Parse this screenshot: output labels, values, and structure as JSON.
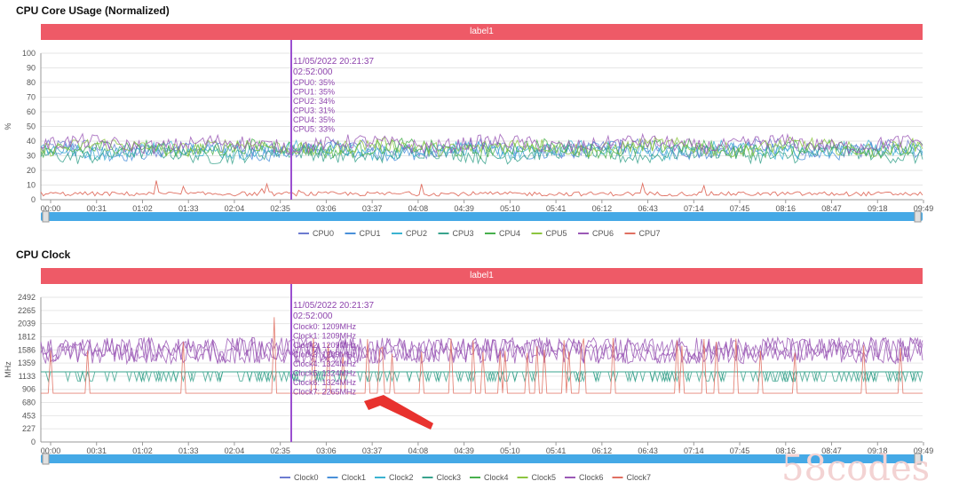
{
  "charts": [
    {
      "title": "CPU Core USage (Normalized)",
      "label_bar": "label1",
      "ylabel": "%",
      "colors": [
        "#6d7bd0",
        "#4a90d9",
        "#3bb3d1",
        "#39a38d",
        "#48b04d",
        "#8cc53f",
        "#9b59b6",
        "#e07062"
      ]
    },
    {
      "title": "CPU Clock",
      "label_bar": "label1",
      "ylabel": "MHz",
      "colors": [
        "#6d7bd0",
        "#4a90d9",
        "#3bb3d1",
        "#39a38d",
        "#48b04d",
        "#8cc53f",
        "#9b59b6",
        "#e07062"
      ]
    }
  ],
  "chart_data": [
    {
      "type": "line",
      "title": "CPU Core USage (Normalized)",
      "ylabel": "%",
      "ylim": [
        0,
        100
      ],
      "yticks": [
        "0",
        "10",
        "20",
        "30",
        "40",
        "50",
        "60",
        "70",
        "80",
        "90",
        "100"
      ],
      "xticks": [
        "00:00",
        "00:31",
        "01:02",
        "01:33",
        "02:04",
        "02:35",
        "03:06",
        "03:37",
        "04:08",
        "04:39",
        "05:10",
        "05:41",
        "06:12",
        "06:43",
        "07:14",
        "07:45",
        "08:16",
        "08:47",
        "09:18",
        "09:49"
      ],
      "series_names": [
        "CPU0",
        "CPU1",
        "CPU2",
        "CPU3",
        "CPU4",
        "CPU5",
        "CPU6",
        "CPU7"
      ],
      "series_typical_values": [
        35,
        33,
        34,
        31,
        35,
        36,
        38,
        4
      ],
      "tooltip": {
        "date": "11/05/2022 20:21:37",
        "time": "02:52:000",
        "lines": [
          "CPU0: 35%",
          "CPU1: 35%",
          "CPU2: 34%",
          "CPU3: 31%",
          "CPU4: 35%",
          "CPU5: 33%"
        ]
      },
      "cursor_time": "02:52"
    },
    {
      "type": "line",
      "title": "CPU Clock",
      "ylabel": "MHz",
      "ylim": [
        0,
        2492
      ],
      "yticks": [
        "0",
        "227",
        "453",
        "680",
        "906",
        "1133",
        "1359",
        "1586",
        "1812",
        "2039",
        "2265",
        "2492"
      ],
      "xticks": [
        "00:00",
        "00:31",
        "01:02",
        "01:33",
        "02:04",
        "02:35",
        "03:06",
        "03:37",
        "04:08",
        "04:39",
        "05:10",
        "05:41",
        "06:12",
        "06:43",
        "07:14",
        "07:45",
        "08:16",
        "08:47",
        "09:18",
        "09:49"
      ],
      "series_names": [
        "Clock0",
        "Clock1",
        "Clock2",
        "Clock3",
        "Clock4",
        "Clock5",
        "Clock6",
        "Clock7"
      ],
      "tooltip": {
        "date": "11/05/2022 20:21:37",
        "time": "02:52:000",
        "lines": [
          "Clock0: 1209MHz",
          "Clock1: 1209MHz",
          "Clock2: 1209MHz",
          "Clock3: 1209MHz",
          "Clock4: 1324MHz",
          "Clock5: 1324MHz",
          "Clock6: 1324MHz",
          "Clock7: 2265MHz"
        ]
      },
      "cursor_time": "02:52"
    }
  ],
  "watermark": "58codes"
}
